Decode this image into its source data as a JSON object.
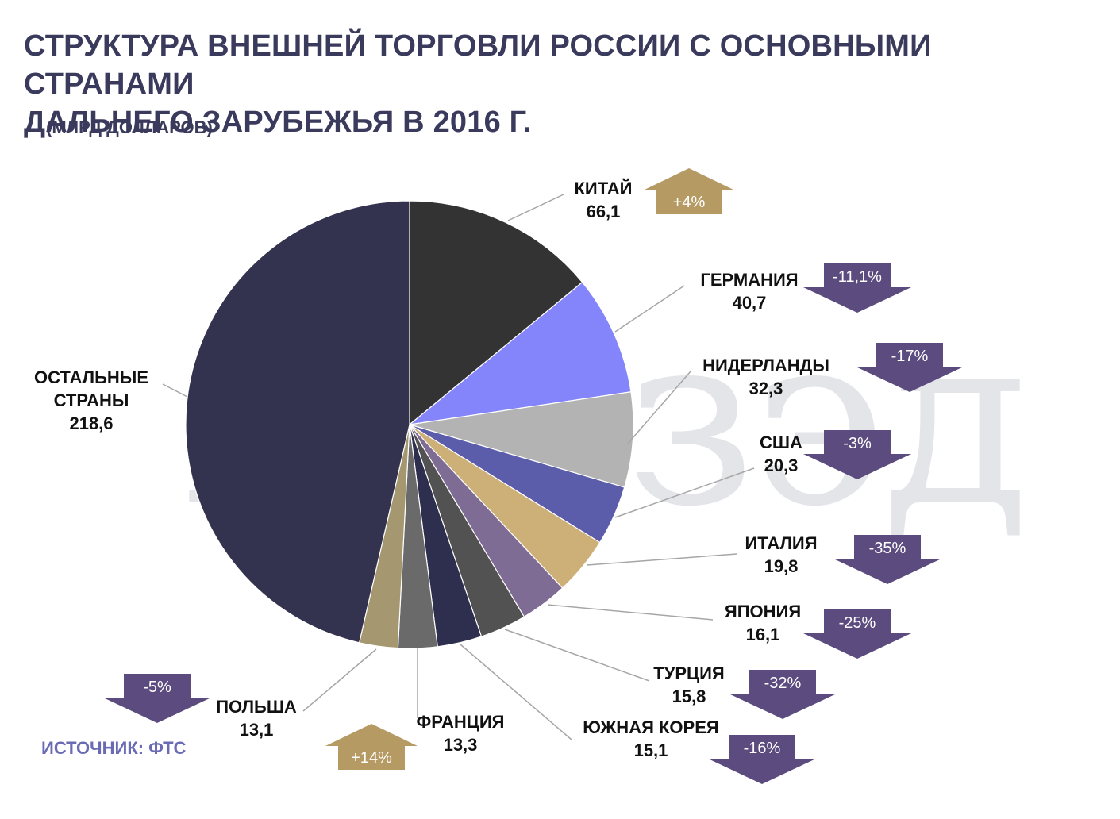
{
  "title_line1": "СТРУКТУРА ВНЕШНЕЙ ТОРГОВЛИ РОССИИ С ОСНОВНЫМИ СТРАНАМИ",
  "title_line2": "ДАЛЬНЕГО ЗАРУБЕЖЬЯ В 2016 Г.",
  "subtitle": "(МЛРД ДОЛЛАРОВ)",
  "source": "ИСТОЧНИК: ФТС",
  "watermark": "прозэд",
  "colors": {
    "up": "#b69a63",
    "down": "#5b4b7e",
    "title": "#3a3a5c",
    "source": "#6b6bb5"
  },
  "chart_data": {
    "type": "pie",
    "title": "СТРУКТУРА ВНЕШНЕЙ ТОРГОВЛИ РОССИИ С ОСНОВНЫМИ СТРАНАМИ ДАЛЬНЕГО ЗАРУБЕЖЬЯ В 2016 Г.",
    "unit": "(МЛРД ДОЛЛАРОВ)",
    "slices": [
      {
        "label_lines": [
          "КИТАЙ"
        ],
        "value": 66.1,
        "value_text": "66,1",
        "change": "+4%",
        "direction": "up",
        "color": "#333333"
      },
      {
        "label_lines": [
          "ГЕРМАНИЯ"
        ],
        "value": 40.7,
        "value_text": "40,7",
        "change": "-11,1%",
        "direction": "down",
        "color": "#8585fb"
      },
      {
        "label_lines": [
          "НИДЕРЛАНДЫ"
        ],
        "value": 32.3,
        "value_text": "32,3",
        "change": "-17%",
        "direction": "down",
        "color": "#b3b3b3"
      },
      {
        "label_lines": [
          "США"
        ],
        "value": 20.3,
        "value_text": "20,3",
        "change": "-3%",
        "direction": "down",
        "color": "#5b5dab"
      },
      {
        "label_lines": [
          "ИТАЛИЯ"
        ],
        "value": 19.8,
        "value_text": "19,8",
        "change": "-35%",
        "direction": "down",
        "color": "#cdaf78"
      },
      {
        "label_lines": [
          "ЯПОНИЯ"
        ],
        "value": 16.1,
        "value_text": "16,1",
        "change": "-25%",
        "direction": "down",
        "color": "#7f6c95"
      },
      {
        "label_lines": [
          "ТУРЦИЯ"
        ],
        "value": 15.8,
        "value_text": "15,8",
        "change": "-32%",
        "direction": "down",
        "color": "#525252"
      },
      {
        "label_lines": [
          "ЮЖНАЯ КОРЕЯ"
        ],
        "value": 15.1,
        "value_text": "15,1",
        "change": "-16%",
        "direction": "down",
        "color": "#2e2e4f"
      },
      {
        "label_lines": [
          "ФРАНЦИЯ"
        ],
        "value": 13.3,
        "value_text": "13,3",
        "change": "+14%",
        "direction": "up",
        "color": "#6a6a6a"
      },
      {
        "label_lines": [
          "ПОЛЬША"
        ],
        "value": 13.1,
        "value_text": "13,1",
        "change": "-5%",
        "direction": "down",
        "color": "#a59770"
      },
      {
        "label_lines": [
          "ОСТАЛЬНЫЕ",
          "СТРАНЫ"
        ],
        "value": 218.6,
        "value_text": "218,6",
        "change": "",
        "direction": "",
        "color": "#33324f"
      }
    ]
  }
}
